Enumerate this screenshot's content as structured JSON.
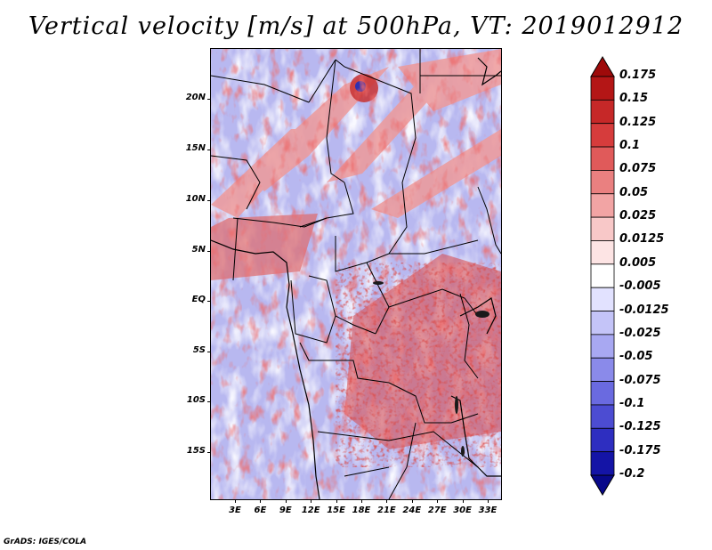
{
  "title": "Vertical velocity [m/s] at 500hPa, VT: 2019012912",
  "credit": "GrADS: IGES/COLA",
  "lat_labels": [
    "20N",
    "15N",
    "10N",
    "5N",
    "EQ",
    "5S",
    "10S",
    "15S"
  ],
  "lon_labels": [
    "3E",
    "6E",
    "9E",
    "12E",
    "15E",
    "18E",
    "21E",
    "24E",
    "27E",
    "30E",
    "33E"
  ],
  "colorbar": {
    "labels": [
      "0.175",
      "0.15",
      "0.125",
      "0.1",
      "0.075",
      "0.05",
      "0.025",
      "0.0125",
      "0.005",
      "-0.005",
      "-0.0125",
      "-0.025",
      "-0.05",
      "-0.075",
      "-0.1",
      "-0.125",
      "-0.175",
      "-0.2"
    ],
    "colors": [
      "#9e0a0a",
      "#b41616",
      "#c62828",
      "#d63c3c",
      "#e05a5a",
      "#ea8080",
      "#f2a4a4",
      "#f8c8c8",
      "#fde4e4",
      "#ffffff",
      "#e2e2ff",
      "#c4c4f8",
      "#a8a8f2",
      "#8a8aea",
      "#6a6ae0",
      "#4c4cd2",
      "#2e2ec0",
      "#1414a6",
      "#08088a"
    ]
  },
  "colors": {
    "positive": "#d02a2a",
    "negative": "#4a4ad8",
    "border": "#000000"
  }
}
